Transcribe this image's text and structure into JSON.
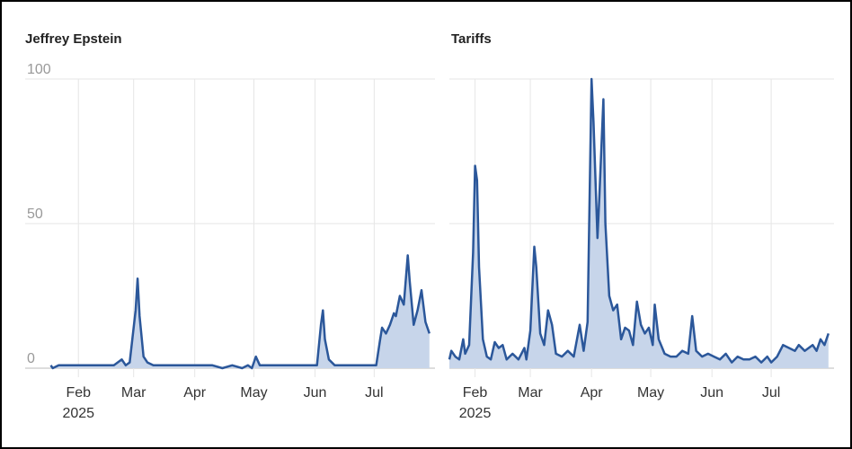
{
  "chart_data": [
    {
      "type": "area",
      "title": "Jeffrey Epstein",
      "color": "#2b579a",
      "fill": "#c7d5ea",
      "x": [
        18,
        19,
        22,
        30,
        40,
        50,
        54,
        56,
        58,
        61,
        62,
        63,
        65,
        67,
        70,
        80,
        95,
        100,
        105,
        110,
        115,
        118,
        120,
        122,
        124,
        130,
        140,
        150,
        153,
        155,
        156,
        157,
        159,
        162,
        170,
        180,
        183,
        185,
        186,
        188,
        190,
        192,
        193,
        195,
        197,
        199,
        200,
        202,
        204,
        206,
        208,
        210
      ],
      "values": [
        1,
        0,
        1,
        1,
        1,
        1,
        3,
        1,
        2,
        20,
        31,
        18,
        4,
        2,
        1,
        1,
        1,
        1,
        0,
        1,
        0,
        1,
        0,
        4,
        1,
        1,
        1,
        1,
        1,
        15,
        20,
        10,
        3,
        1,
        1,
        1,
        1,
        10,
        14,
        12,
        15,
        19,
        18,
        25,
        22,
        39,
        30,
        15,
        20,
        27,
        16,
        12
      ],
      "xlim": [
        5,
        211
      ],
      "ylim": [
        0,
        100
      ],
      "yticks": [
        0,
        50,
        100
      ],
      "ytick_labels": true,
      "grid": true,
      "xticks": [
        {
          "value": 32,
          "label": "Feb 2025"
        },
        {
          "value": 60,
          "label": "Mar"
        },
        {
          "value": 91,
          "label": "Apr"
        },
        {
          "value": 121,
          "label": "May"
        },
        {
          "value": 152,
          "label": "Jun"
        },
        {
          "value": 182,
          "label": "Jul"
        }
      ]
    },
    {
      "type": "area",
      "title": "Tariffs",
      "color": "#2b579a",
      "fill": "#c7d5ea",
      "x": [
        19,
        20,
        22,
        24,
        26,
        27,
        29,
        31,
        32,
        33,
        34,
        36,
        38,
        40,
        42,
        44,
        46,
        48,
        51,
        54,
        57,
        58,
        60,
        62,
        63,
        65,
        67,
        69,
        71,
        73,
        76,
        79,
        82,
        85,
        87,
        89,
        91,
        92,
        94,
        95,
        97,
        98,
        100,
        102,
        104,
        106,
        108,
        110,
        112,
        114,
        116,
        118,
        120,
        122,
        123,
        125,
        128,
        131,
        134,
        137,
        140,
        142,
        144,
        147,
        150,
        153,
        156,
        159,
        162,
        165,
        168,
        171,
        174,
        177,
        180,
        182,
        185,
        188,
        191,
        194,
        196,
        199,
        201,
        203,
        205,
        207,
        209,
        211
      ],
      "values": [
        3,
        6,
        4,
        3,
        10,
        5,
        8,
        40,
        70,
        65,
        35,
        10,
        4,
        3,
        9,
        7,
        8,
        3,
        5,
        3,
        7,
        3,
        13,
        42,
        35,
        12,
        8,
        20,
        15,
        5,
        4,
        6,
        4,
        15,
        6,
        16,
        100,
        85,
        45,
        60,
        93,
        50,
        25,
        20,
        22,
        10,
        14,
        13,
        8,
        23,
        15,
        12,
        14,
        8,
        22,
        10,
        5,
        4,
        4,
        6,
        5,
        18,
        6,
        4,
        5,
        4,
        3,
        5,
        2,
        4,
        3,
        3,
        4,
        2,
        4,
        2,
        4,
        8,
        7,
        6,
        8,
        6,
        7,
        8,
        6,
        10,
        8,
        12
      ],
      "xlim": [
        19,
        212
      ],
      "ylim": [
        0,
        100
      ],
      "yticks": [
        0,
        50,
        100
      ],
      "ytick_labels": false,
      "grid": true,
      "xticks": [
        {
          "value": 32,
          "label": "Feb 2025"
        },
        {
          "value": 60,
          "label": "Mar"
        },
        {
          "value": 91,
          "label": "Apr"
        },
        {
          "value": 121,
          "label": "May"
        },
        {
          "value": 152,
          "label": "Jun"
        },
        {
          "value": 182,
          "label": "Jul"
        }
      ]
    }
  ]
}
